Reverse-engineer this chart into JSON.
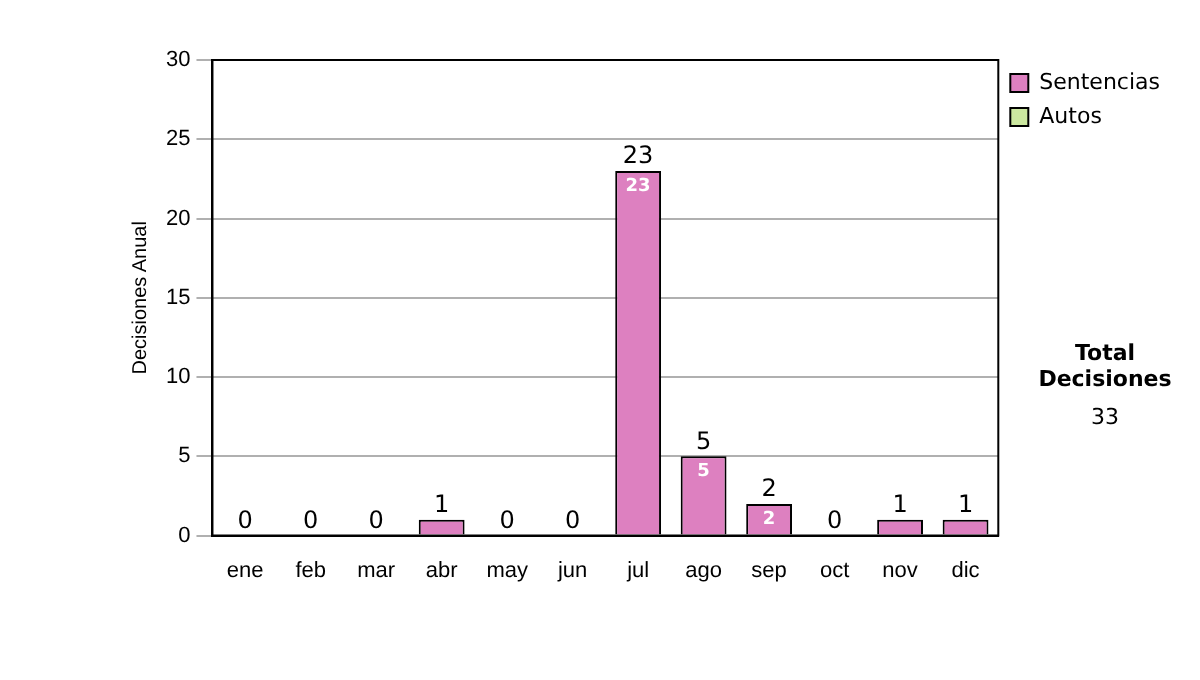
{
  "chart_data": {
    "type": "bar",
    "stacked": true,
    "ylabel": "Decisiones Anual",
    "categories": [
      "ene",
      "feb",
      "mar",
      "abr",
      "may",
      "jun",
      "jul",
      "ago",
      "sep",
      "oct",
      "nov",
      "dic"
    ],
    "series": [
      {
        "name": "Sentencias",
        "color": "#dd80c0",
        "values": [
          0,
          0,
          0,
          1,
          0,
          0,
          23,
          5,
          2,
          0,
          1,
          1
        ],
        "value_labels": [
          null,
          null,
          null,
          null,
          null,
          null,
          "23",
          "5",
          "2",
          null,
          null,
          null
        ]
      },
      {
        "name": "Autos",
        "color": "#cce8a0",
        "values": [
          0,
          0,
          0,
          0,
          0,
          0,
          0,
          0,
          0,
          0,
          0,
          0
        ]
      }
    ],
    "totals": [
      "0",
      "0",
      "0",
      "1",
      "0",
      "0",
      "23",
      "5",
      "2",
      "0",
      "1",
      "1"
    ],
    "ylim": [
      0,
      30
    ],
    "yticks": [
      0,
      5,
      10,
      15,
      20,
      25,
      30
    ],
    "grid": "y",
    "legend": "right",
    "annotations": [
      "Total Decisiones",
      "33"
    ]
  }
}
